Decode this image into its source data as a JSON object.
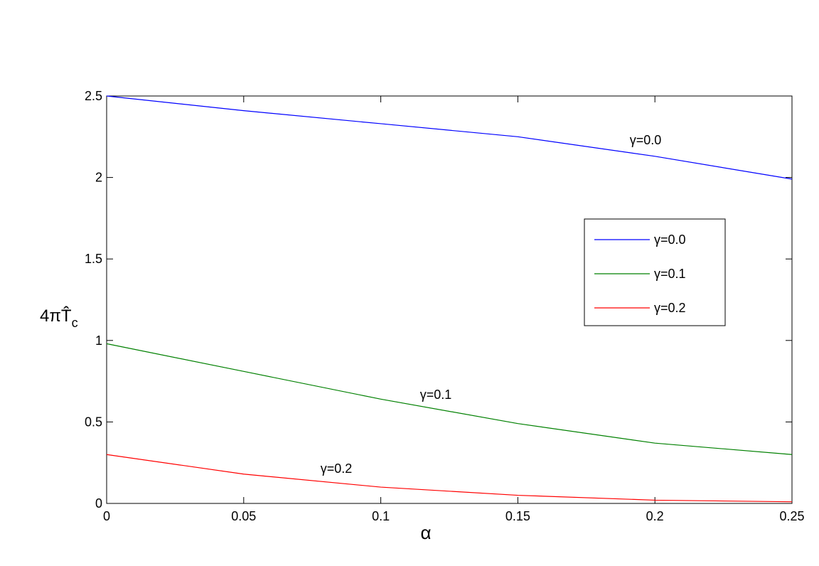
{
  "chart_data": {
    "type": "line",
    "xlabel": "α",
    "ylabel": "4πT̂",
    "ylabel_subscript": "c",
    "x": [
      0,
      0.05,
      0.1,
      0.15,
      0.2,
      0.25
    ],
    "series": [
      {
        "name": "γ=0.0",
        "color": "#0000ff",
        "values": [
          2.5,
          2.41,
          2.33,
          2.25,
          2.13,
          1.99
        ]
      },
      {
        "name": "γ=0.1",
        "color": "#008000",
        "values": [
          0.98,
          0.81,
          0.64,
          0.49,
          0.37,
          0.3
        ]
      },
      {
        "name": "γ=0.2",
        "color": "#ff0000",
        "values": [
          0.3,
          0.18,
          0.1,
          0.05,
          0.02,
          0.01
        ]
      }
    ],
    "annotations": [
      "γ=0.0",
      "γ=0.1",
      "γ=0.2"
    ],
    "xlim": [
      0,
      0.25
    ],
    "xticks": [
      0,
      0.05,
      0.1,
      0.15,
      0.2,
      0.25
    ],
    "ylim": [
      0,
      2.5
    ],
    "yticks": [
      0,
      0.5,
      1,
      1.5,
      2,
      2.5
    ],
    "grid": false,
    "legend": "east"
  }
}
